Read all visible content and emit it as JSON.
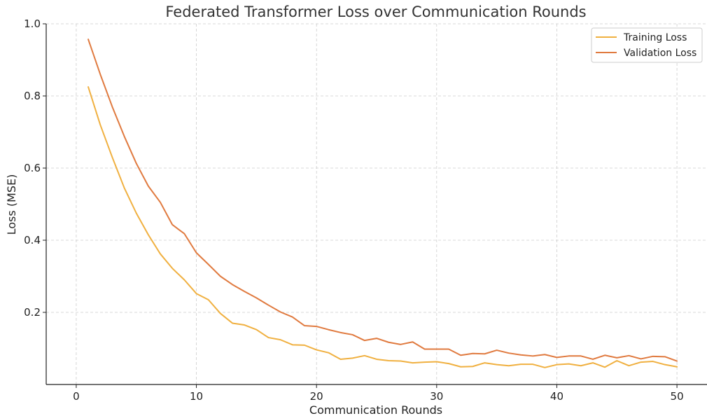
{
  "chart_data": {
    "type": "line",
    "title": "Federated Transformer Loss over Communication Rounds",
    "xlabel": "Communication Rounds",
    "ylabel": "Loss (MSE)",
    "xlim": [
      -2.5,
      52.5
    ],
    "ylim": [
      0.0,
      1.0
    ],
    "xticks": [
      0,
      10,
      20,
      30,
      40,
      50
    ],
    "yticks": [
      0.2,
      0.4,
      0.6,
      0.8,
      1.0
    ],
    "xtick_labels": [
      "0",
      "10",
      "20",
      "30",
      "40",
      "50"
    ],
    "ytick_labels": [
      "0.2",
      "0.4",
      "0.6",
      "0.8",
      "1.0"
    ],
    "grid": true,
    "legend_position": "top-right",
    "x": [
      1,
      2,
      3,
      4,
      5,
      6,
      7,
      8,
      9,
      10,
      11,
      12,
      13,
      14,
      15,
      16,
      17,
      18,
      19,
      20,
      21,
      22,
      23,
      24,
      25,
      26,
      27,
      28,
      29,
      30,
      31,
      32,
      33,
      34,
      35,
      36,
      37,
      38,
      39,
      40,
      41,
      42,
      43,
      44,
      45,
      46,
      47,
      48,
      49,
      50
    ],
    "series": [
      {
        "name": "Training Loss",
        "color": "#f0b040",
        "values": [
          0.825,
          0.72,
          0.63,
          0.545,
          0.475,
          0.415,
          0.362,
          0.322,
          0.29,
          0.252,
          0.235,
          0.197,
          0.17,
          0.165,
          0.152,
          0.13,
          0.124,
          0.11,
          0.109,
          0.096,
          0.088,
          0.07,
          0.073,
          0.08,
          0.07,
          0.066,
          0.065,
          0.06,
          0.062,
          0.063,
          0.058,
          0.049,
          0.05,
          0.06,
          0.055,
          0.052,
          0.056,
          0.056,
          0.047,
          0.055,
          0.057,
          0.052,
          0.06,
          0.048,
          0.066,
          0.052,
          0.062,
          0.064,
          0.055,
          0.049
        ]
      },
      {
        "name": "Validation Loss",
        "color": "#e07a3f",
        "values": [
          0.957,
          0.86,
          0.77,
          0.688,
          0.613,
          0.55,
          0.505,
          0.443,
          0.418,
          0.365,
          0.333,
          0.3,
          0.277,
          0.258,
          0.24,
          0.22,
          0.201,
          0.187,
          0.163,
          0.161,
          0.152,
          0.144,
          0.138,
          0.122,
          0.128,
          0.117,
          0.111,
          0.118,
          0.098,
          0.098,
          0.098,
          0.081,
          0.086,
          0.085,
          0.095,
          0.087,
          0.082,
          0.079,
          0.083,
          0.075,
          0.079,
          0.079,
          0.07,
          0.081,
          0.074,
          0.08,
          0.071,
          0.078,
          0.077,
          0.065
        ]
      }
    ]
  }
}
